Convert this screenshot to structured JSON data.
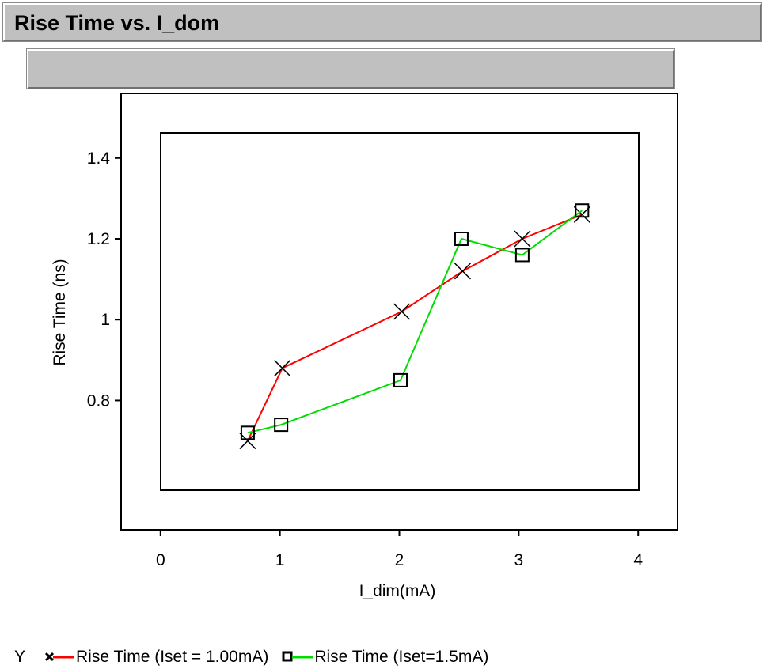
{
  "title": "Rise Time vs. I_dom",
  "subtitle": "",
  "legend": {
    "prefix": "Y",
    "items": [
      {
        "label": "Rise Time (Iset = 1.00mA)",
        "color": "#ff0000",
        "marker": "x-icon"
      },
      {
        "label": "Rise Time (Iset=1.5mA)",
        "color": "#00dd00",
        "marker": "square-icon"
      }
    ]
  },
  "chart_data": {
    "type": "line",
    "title": "Rise Time vs. I_dom",
    "xlabel": "I_dim(mA)",
    "ylabel": "Rise Time (ns)",
    "xlim": [
      -0.33,
      4.33
    ],
    "ylim": [
      0.48,
      1.56
    ],
    "x_ticks": [
      0,
      1,
      2,
      3,
      4
    ],
    "x_tick_labels": [
      "0",
      "1",
      "2",
      "3",
      "4"
    ],
    "y_ticks": [
      0.8,
      1.0,
      1.2,
      1.4
    ],
    "y_tick_labels": [
      "0.8",
      "1",
      "1.2",
      "1.4"
    ],
    "grid": false,
    "legend_position": "bottom",
    "series": [
      {
        "name": "Rise Time (Iset = 1.00mA)",
        "color": "#ff0000",
        "marker": "x",
        "x": [
          0.73,
          1.02,
          2.02,
          2.53,
          3.03,
          3.53
        ],
        "y": [
          0.7,
          0.88,
          1.02,
          1.12,
          1.2,
          1.26
        ]
      },
      {
        "name": "Rise Time (Iset=1.5mA)",
        "color": "#00dd00",
        "marker": "square",
        "x": [
          0.73,
          1.01,
          2.01,
          2.52,
          3.03,
          3.53
        ],
        "y": [
          0.72,
          0.74,
          0.85,
          1.2,
          1.16,
          1.27
        ]
      }
    ]
  }
}
